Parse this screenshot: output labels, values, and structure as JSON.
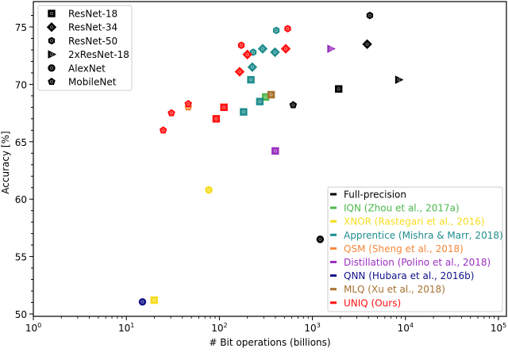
{
  "chart_data": {
    "type": "scatter",
    "title": "",
    "xlabel": "# Bit operations (billions)",
    "ylabel": "Accuracy [%]",
    "xscale": "log",
    "xlim": [
      1,
      100000
    ],
    "ylim": [
      49.8,
      77.0
    ],
    "x_ticks": [
      {
        "value": 1,
        "base": "10",
        "exp": "0"
      },
      {
        "value": 10,
        "base": "10",
        "exp": "1"
      },
      {
        "value": 100,
        "base": "10",
        "exp": "2"
      },
      {
        "value": 1000,
        "base": "10",
        "exp": "3"
      },
      {
        "value": 10000,
        "base": "10",
        "exp": "4"
      },
      {
        "value": 100000,
        "base": "10",
        "exp": "5"
      }
    ],
    "y_ticks": [
      "50",
      "55",
      "60",
      "65",
      "70",
      "75"
    ],
    "grid": false,
    "architectures": [
      {
        "key": "resnet18",
        "label": "ResNet-18",
        "marker": "square"
      },
      {
        "key": "resnet34",
        "label": "ResNet-34",
        "marker": "diamond"
      },
      {
        "key": "resnet50",
        "label": "ResNet-50",
        "marker": "hexagon"
      },
      {
        "key": "2xresnet18",
        "label": "2xResNet-18",
        "marker": "triangle-right"
      },
      {
        "key": "alexnet",
        "label": "AlexNet",
        "marker": "circle"
      },
      {
        "key": "mobilenet",
        "label": "MobileNet",
        "marker": "pentagon"
      }
    ],
    "architecture_legend_placement": "top-left",
    "method_legend_placement": "bottom-right",
    "series": [
      {
        "name": "Full-precision",
        "color": "#000000",
        "points": [
          {
            "arch": "resnet50",
            "x": 4140,
            "y": 76.0
          },
          {
            "arch": "resnet34",
            "x": 3880,
            "y": 73.5
          },
          {
            "arch": "2xresnet18",
            "x": 8470,
            "y": 70.4
          },
          {
            "arch": "resnet18",
            "x": 1915,
            "y": 69.6
          },
          {
            "arch": "mobilenet",
            "x": 621,
            "y": 68.2
          },
          {
            "arch": "alexnet",
            "x": 1211,
            "y": 56.5
          }
        ]
      },
      {
        "name": "IQN (Zhou et al., 2017a)",
        "color": "#4cb84c",
        "points": [
          {
            "arch": "resnet18",
            "x": 314,
            "y": 68.9
          }
        ]
      },
      {
        "name": "XNOR (Rastegari et al., 2016)",
        "color": "#f7dc1e",
        "points": [
          {
            "arch": "alexnet",
            "x": 77,
            "y": 60.8
          },
          {
            "arch": "resnet18",
            "x": 19.9,
            "y": 51.2
          }
        ]
      },
      {
        "name": "Apprentice (Mishra & Marr, 2018)",
        "color": "#1f8c8c",
        "points": [
          {
            "arch": "resnet18",
            "x": 182,
            "y": 67.6
          },
          {
            "arch": "resnet18",
            "x": 272,
            "y": 68.5
          },
          {
            "arch": "resnet18",
            "x": 218,
            "y": 70.4
          },
          {
            "arch": "resnet34",
            "x": 226,
            "y": 71.5
          },
          {
            "arch": "resnet50",
            "x": 231,
            "y": 72.8
          },
          {
            "arch": "resnet34",
            "x": 292,
            "y": 73.1
          },
          {
            "arch": "resnet34",
            "x": 396,
            "y": 72.8
          },
          {
            "arch": "resnet50",
            "x": 409,
            "y": 74.7
          }
        ]
      },
      {
        "name": "QSM (Sheng et al., 2018)",
        "color": "#f5873a",
        "points": [
          {
            "arch": "mobilenet",
            "x": 46.3,
            "y": 68.0
          }
        ]
      },
      {
        "name": "Distillation (Polino et al., 2018)",
        "color": "#9b30c0",
        "points": [
          {
            "arch": "2xresnet18",
            "x": 1578,
            "y": 73.1
          },
          {
            "arch": "resnet18",
            "x": 399,
            "y": 64.2
          }
        ]
      },
      {
        "name": "QNN (Hubara et al., 2016b)",
        "color": "#10108a",
        "points": [
          {
            "arch": "alexnet",
            "x": 14.9,
            "y": 51.05
          }
        ]
      },
      {
        "name": "MLQ (Xu et al., 2018)",
        "color": "#a8712e",
        "points": [
          {
            "arch": "resnet18",
            "x": 360,
            "y": 69.1
          }
        ]
      },
      {
        "name": "UNIQ (Ours)",
        "color": "#ff1010",
        "points": [
          {
            "arch": "mobilenet",
            "x": 24.9,
            "y": 66.0
          },
          {
            "arch": "mobilenet",
            "x": 30.5,
            "y": 67.5
          },
          {
            "arch": "mobilenet",
            "x": 46.3,
            "y": 68.3
          },
          {
            "arch": "resnet18",
            "x": 92.4,
            "y": 67.0
          },
          {
            "arch": "resnet18",
            "x": 112,
            "y": 68.0
          },
          {
            "arch": "resnet34",
            "x": 165,
            "y": 71.1
          },
          {
            "arch": "resnet34",
            "x": 200,
            "y": 72.6
          },
          {
            "arch": "resnet50",
            "x": 172,
            "y": 73.4
          },
          {
            "arch": "resnet50",
            "x": 542,
            "y": 74.85
          },
          {
            "arch": "resnet34",
            "x": 517,
            "y": 73.1
          }
        ]
      }
    ]
  }
}
